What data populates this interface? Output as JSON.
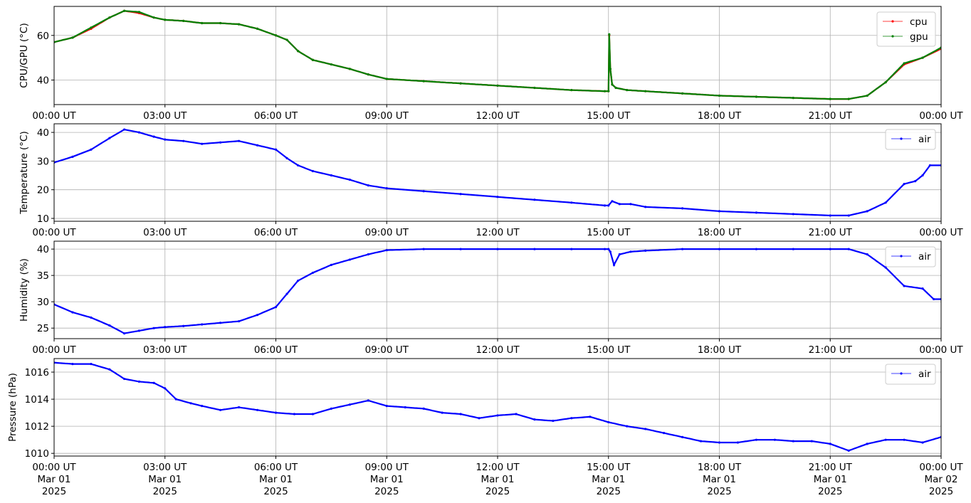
{
  "x_ticks": [
    "00:00 UT",
    "03:00 UT",
    "06:00 UT",
    "09:00 UT",
    "12:00 UT",
    "15:00 UT",
    "18:00 UT",
    "21:00 UT",
    "00:00 UT"
  ],
  "x_date_labels": [
    [
      "Mar 01",
      "2025"
    ],
    [
      "Mar 01",
      "2025"
    ],
    [
      "Mar 01",
      "2025"
    ],
    [
      "Mar 01",
      "2025"
    ],
    [
      "Mar 01",
      "2025"
    ],
    [
      "Mar 01",
      "2025"
    ],
    [
      "Mar 01",
      "2025"
    ],
    [
      "Mar 01",
      "2025"
    ],
    [
      "Mar 02",
      "2025"
    ]
  ],
  "chart_data": [
    {
      "type": "line",
      "ylabel": "CPU/GPU (°C)",
      "ylim": [
        29,
        73
      ],
      "yticks": [
        40,
        60
      ],
      "xlim": [
        0,
        24
      ],
      "grid": true,
      "legend": "top-right",
      "series": [
        {
          "name": "cpu",
          "color": "#ff0000",
          "x": [
            0,
            0.5,
            1,
            1.5,
            1.9,
            2.3,
            2.7,
            3,
            3.5,
            4,
            4.5,
            5,
            5.5,
            6,
            6.3,
            6.6,
            7,
            7.5,
            8,
            8.5,
            9,
            10,
            11,
            12,
            13,
            14,
            14.9,
            15.0,
            15.02,
            15.05,
            15.1,
            15.2,
            15.5,
            16,
            17,
            18,
            19,
            20,
            21,
            21.5,
            22,
            22.5,
            23,
            23.5,
            24
          ],
          "y": [
            57,
            59,
            63,
            68,
            71,
            70,
            68,
            67,
            66.5,
            65.5,
            65.5,
            65,
            63,
            60,
            58,
            53,
            49,
            47,
            45,
            42.5,
            40.5,
            39.5,
            38.5,
            37.5,
            36.5,
            35.5,
            35,
            35,
            60,
            45,
            38,
            36.5,
            35.5,
            35,
            34,
            33,
            32.5,
            32,
            31.5,
            31.5,
            33,
            39,
            47,
            50,
            54
          ]
        },
        {
          "name": "gpu",
          "color": "#008000",
          "x": [
            0,
            0.5,
            1,
            1.5,
            1.9,
            2.3,
            2.7,
            3,
            3.5,
            4,
            4.5,
            5,
            5.5,
            6,
            6.3,
            6.6,
            7,
            7.5,
            8,
            8.5,
            9,
            10,
            11,
            12,
            13,
            14,
            14.9,
            15.0,
            15.02,
            15.05,
            15.1,
            15.2,
            15.5,
            16,
            17,
            18,
            19,
            20,
            21,
            21.5,
            22,
            22.5,
            23,
            23.5,
            24
          ],
          "y": [
            57,
            59,
            63.5,
            68,
            71,
            70.5,
            68,
            67,
            66.5,
            65.5,
            65.5,
            65,
            63,
            60,
            58,
            53,
            49,
            47,
            45,
            42.5,
            40.5,
            39.5,
            38.5,
            37.5,
            36.5,
            35.5,
            35,
            35,
            60.5,
            45,
            38,
            36.5,
            35.5,
            35,
            34,
            33,
            32.5,
            32,
            31.5,
            31.5,
            33,
            39,
            47.5,
            50,
            54.5
          ]
        }
      ]
    },
    {
      "type": "line",
      "ylabel": "Temperature (°C)",
      "ylim": [
        9,
        43
      ],
      "yticks": [
        10,
        20,
        30,
        40
      ],
      "xlim": [
        0,
        24
      ],
      "grid": true,
      "legend": "top-right",
      "series": [
        {
          "name": "air",
          "color": "#0000ff",
          "x": [
            0,
            0.5,
            1,
            1.5,
            1.9,
            2.3,
            2.7,
            3,
            3.5,
            4,
            4.5,
            5,
            5.5,
            6,
            6.3,
            6.6,
            7,
            7.5,
            8,
            8.5,
            9,
            10,
            11,
            12,
            13,
            14,
            14.9,
            15.0,
            15.1,
            15.3,
            15.6,
            16,
            17,
            18,
            19,
            20,
            21,
            21.5,
            22,
            22.5,
            23,
            23.3,
            23.5,
            23.7,
            24
          ],
          "y": [
            29.5,
            31.5,
            34,
            38,
            41,
            40,
            38.5,
            37.5,
            37,
            36,
            36.5,
            37,
            35.5,
            34,
            31,
            28.5,
            26.5,
            25,
            23.5,
            21.5,
            20.5,
            19.5,
            18.5,
            17.5,
            16.5,
            15.5,
            14.5,
            14.5,
            16,
            15,
            15,
            14,
            13.5,
            12.5,
            12,
            11.5,
            11,
            11,
            12.5,
            15.5,
            22,
            23,
            25,
            28.5,
            28.5
          ]
        }
      ]
    },
    {
      "type": "line",
      "ylabel": "Humidity (%)",
      "ylim": [
        23,
        41.5
      ],
      "yticks": [
        25,
        30,
        35,
        40
      ],
      "xlim": [
        0,
        24
      ],
      "grid": true,
      "legend": "top-right",
      "series": [
        {
          "name": "air",
          "color": "#0000ff",
          "x": [
            0,
            0.5,
            1,
            1.5,
            1.9,
            2.3,
            2.7,
            3,
            3.5,
            4,
            4.5,
            5,
            5.5,
            6,
            6.3,
            6.6,
            7,
            7.5,
            8,
            8.5,
            9,
            10,
            11,
            12,
            13,
            14,
            14.9,
            15.0,
            15.05,
            15.15,
            15.3,
            15.6,
            16,
            17,
            18,
            19,
            20,
            21,
            21.5,
            22,
            22.5,
            23,
            23.5,
            23.8,
            24
          ],
          "y": [
            29.5,
            28,
            27,
            25.5,
            24,
            24.5,
            25,
            25.2,
            25.4,
            25.7,
            26,
            26.3,
            27.5,
            29,
            31.5,
            34,
            35.5,
            37,
            38,
            39,
            39.8,
            40,
            40,
            40,
            40,
            40,
            40,
            40,
            39.5,
            37,
            39,
            39.5,
            39.7,
            40,
            40,
            40,
            40,
            40,
            40,
            39,
            36.5,
            33,
            32.5,
            30.5,
            30.5
          ]
        }
      ]
    },
    {
      "type": "line",
      "ylabel": "Pressure (hPa)",
      "ylim": [
        1009.8,
        1017
      ],
      "yticks": [
        1010,
        1012,
        1014,
        1016
      ],
      "xlim": [
        0,
        24
      ],
      "grid": true,
      "legend": "top-right",
      "series": [
        {
          "name": "air",
          "color": "#0000ff",
          "x": [
            0,
            0.5,
            1,
            1.5,
            1.9,
            2.3,
            2.7,
            3,
            3.3,
            3.7,
            4,
            4.5,
            5,
            5.5,
            6,
            6.5,
            7,
            7.5,
            8,
            8.5,
            9,
            9.5,
            10,
            10.5,
            11,
            11.5,
            12,
            12.5,
            13,
            13.5,
            14,
            14.5,
            15,
            15.5,
            16,
            16.5,
            17,
            17.5,
            18,
            18.5,
            19,
            19.5,
            20,
            20.5,
            21,
            21.5,
            22,
            22.5,
            23,
            23.5,
            24
          ],
          "y": [
            1016.7,
            1016.6,
            1016.6,
            1016.2,
            1015.5,
            1015.3,
            1015.2,
            1014.8,
            1014.0,
            1013.7,
            1013.5,
            1013.2,
            1013.4,
            1013.2,
            1013.0,
            1012.9,
            1012.9,
            1013.3,
            1013.6,
            1013.9,
            1013.5,
            1013.4,
            1013.3,
            1013.0,
            1012.9,
            1012.6,
            1012.8,
            1012.9,
            1012.5,
            1012.4,
            1012.6,
            1012.7,
            1012.3,
            1012.0,
            1011.8,
            1011.5,
            1011.2,
            1010.9,
            1010.8,
            1010.8,
            1011.0,
            1011.0,
            1010.9,
            1010.9,
            1010.7,
            1010.2,
            1010.7,
            1011.0,
            1011.0,
            1010.8,
            1011.2
          ]
        }
      ]
    }
  ]
}
